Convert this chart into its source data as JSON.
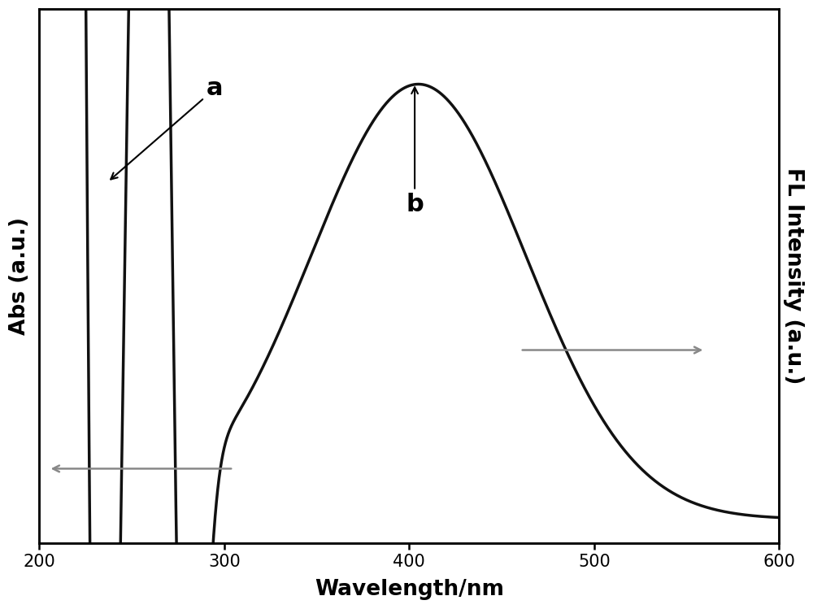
{
  "x_min": 200,
  "x_max": 600,
  "x_label": "Wavelength/nm",
  "y_left_label": "Abs (a.u.)",
  "y_right_label": "FL Intensity (a.u.)",
  "line_color": "#111111",
  "line_width": 2.5,
  "background_color": "#ffffff",
  "label_a_text": "a",
  "label_b_text": "b",
  "arrow_left_color": "#888888",
  "arrow_right_color": "#888888",
  "tick_fontsize": 15,
  "axis_label_fontsize": 19,
  "annotation_fontsize": 22
}
